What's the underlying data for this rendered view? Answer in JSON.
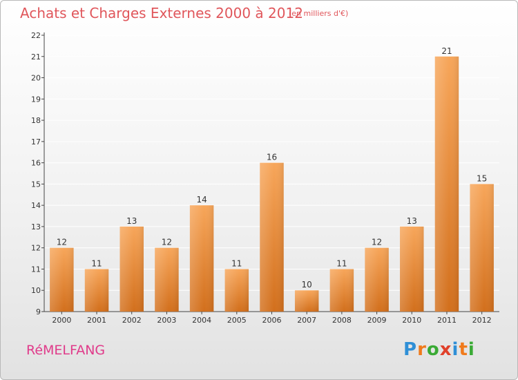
{
  "title": "Achats et Charges Externes 2000 à 2012",
  "subtitle": "(en milliers d'€)",
  "commune": "RéMELFANG",
  "logo": {
    "text": "Proxiti",
    "letters": [
      {
        "ch": "P",
        "color": "#2f8fd6"
      },
      {
        "ch": "r",
        "color": "#f07a1c"
      },
      {
        "ch": "o",
        "color": "#3aaa35"
      },
      {
        "ch": "x",
        "color": "#e0402a"
      },
      {
        "ch": "i",
        "color": "#2f8fd6"
      },
      {
        "ch": "t",
        "color": "#f07a1c"
      },
      {
        "ch": "i",
        "color": "#3aaa35"
      }
    ]
  },
  "chart_data": {
    "type": "bar",
    "categories": [
      "2000",
      "2001",
      "2002",
      "2003",
      "2004",
      "2005",
      "2006",
      "2007",
      "2008",
      "2009",
      "2010",
      "2011",
      "2012"
    ],
    "values": [
      12,
      11,
      13,
      12,
      14,
      11,
      16,
      10,
      11,
      12,
      13,
      21,
      15
    ],
    "ylim": [
      9,
      22
    ],
    "yticks": [
      9,
      10,
      11,
      12,
      13,
      14,
      15,
      16,
      17,
      18,
      19,
      20,
      21,
      22
    ],
    "grid": true,
    "bar_color_top": "#f7a65a",
    "bar_color_bottom": "#d26f1c",
    "grid_color": "#ffffff"
  }
}
